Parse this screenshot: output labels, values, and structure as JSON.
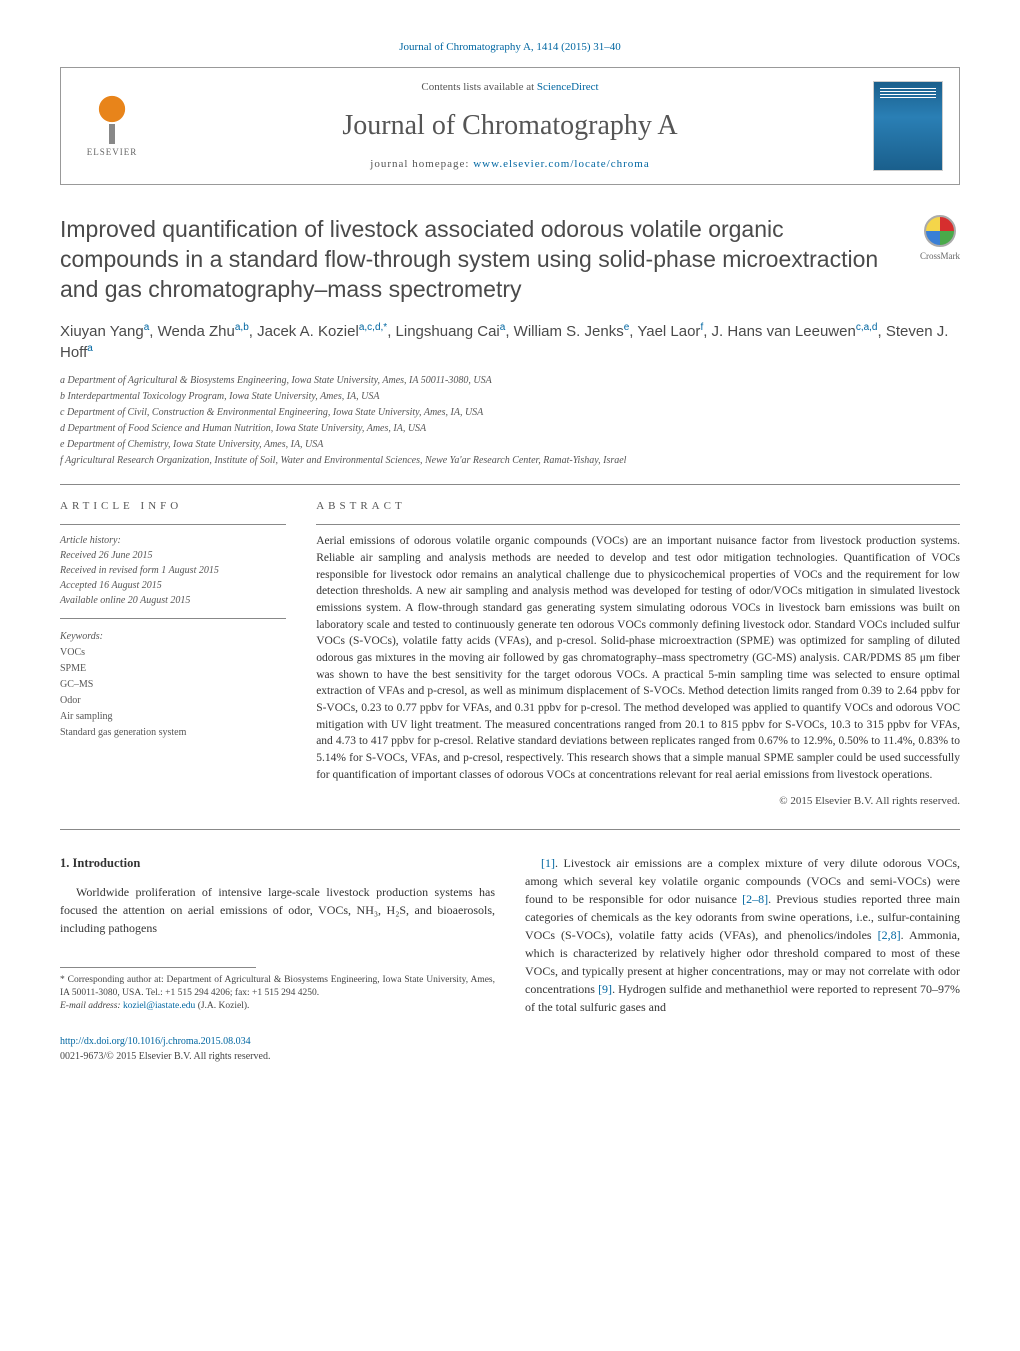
{
  "journal_ref": "Journal of Chromatography A, 1414 (2015) 31–40",
  "header": {
    "contents_prefix": "Contents lists available at ",
    "contents_link": "ScienceDirect",
    "journal_name": "Journal of Chromatography A",
    "homepage_prefix": "journal homepage: ",
    "homepage_url": "www.elsevier.com/locate/chroma",
    "publisher": "ELSEVIER"
  },
  "crossmark_label": "CrossMark",
  "title": "Improved quantification of livestock associated odorous volatile organic compounds in a standard flow-through system using solid-phase microextraction and gas chromatography–mass spectrometry",
  "authors_html": "Xiuyan Yang<sup>a</sup>, Wenda Zhu<sup>a,b</sup>, Jacek A. Koziel<sup>a,c,d,*</sup>, Lingshuang Cai<sup>a</sup>, William S. Jenks<sup>e</sup>, Yael Laor<sup>f</sup>, J. Hans van Leeuwen<sup>c,a,d</sup>, Steven J. Hoff<sup>a</sup>",
  "affiliations": [
    "a Department of Agricultural & Biosystems Engineering, Iowa State University, Ames, IA 50011-3080, USA",
    "b Interdepartmental Toxicology Program, Iowa State University, Ames, IA, USA",
    "c Department of Civil, Construction & Environmental Engineering, Iowa State University, Ames, IA, USA",
    "d Department of Food Science and Human Nutrition, Iowa State University, Ames, IA, USA",
    "e Department of Chemistry, Iowa State University, Ames, IA, USA",
    "f Agricultural Research Organization, Institute of Soil, Water and Environmental Sciences, Newe Ya'ar Research Center, Ramat-Yishay, Israel"
  ],
  "article_info": {
    "label": "ARTICLE INFO",
    "history_head": "Article history:",
    "history": [
      "Received 26 June 2015",
      "Received in revised form 1 August 2015",
      "Accepted 16 August 2015",
      "Available online 20 August 2015"
    ],
    "keywords_head": "Keywords:",
    "keywords": [
      "VOCs",
      "SPME",
      "GC–MS",
      "Odor",
      "Air sampling",
      "Standard gas generation system"
    ]
  },
  "abstract": {
    "label": "ABSTRACT",
    "text": "Aerial emissions of odorous volatile organic compounds (VOCs) are an important nuisance factor from livestock production systems. Reliable air sampling and analysis methods are needed to develop and test odor mitigation technologies. Quantification of VOCs responsible for livestock odor remains an analytical challenge due to physicochemical properties of VOCs and the requirement for low detection thresholds. A new air sampling and analysis method was developed for testing of odor/VOCs mitigation in simulated livestock emissions system. A flow-through standard gas generating system simulating odorous VOCs in livestock barn emissions was built on laboratory scale and tested to continuously generate ten odorous VOCs commonly defining livestock odor. Standard VOCs included sulfur VOCs (S-VOCs), volatile fatty acids (VFAs), and p-cresol. Solid-phase microextraction (SPME) was optimized for sampling of diluted odorous gas mixtures in the moving air followed by gas chromatography–mass spectrometry (GC-MS) analysis. CAR/PDMS 85 μm fiber was shown to have the best sensitivity for the target odorous VOCs. A practical 5-min sampling time was selected to ensure optimal extraction of VFAs and p-cresol, as well as minimum displacement of S-VOCs. Method detection limits ranged from 0.39 to 2.64 ppbv for S-VOCs, 0.23 to 0.77 ppbv for VFAs, and 0.31 ppbv for p-cresol. The method developed was applied to quantify VOCs and odorous VOC mitigation with UV light treatment. The measured concentrations ranged from 20.1 to 815 ppbv for S-VOCs, 10.3 to 315 ppbv for VFAs, and 4.73 to 417 ppbv for p-cresol. Relative standard deviations between replicates ranged from 0.67% to 12.9%, 0.50% to 11.4%, 0.83% to 5.14% for S-VOCs, VFAs, and p-cresol, respectively. This research shows that a simple manual SPME sampler could be used successfully for quantification of important classes of odorous VOCs at concentrations relevant for real aerial emissions from livestock operations.",
    "copyright": "© 2015 Elsevier B.V. All rights reserved."
  },
  "intro": {
    "heading": "1. Introduction",
    "left": "Worldwide proliferation of intensive large-scale livestock production systems has focused the attention on aerial emissions of odor, VOCs, NH₃, H₂S, and bioaerosols, including pathogens",
    "right_1": ". Livestock air emissions are a complex mixture of very dilute odorous VOCs, among which several key volatile organic compounds (VOCs and semi-VOCs) were found to be responsible for odor nuisance ",
    "right_2": ". Previous studies reported three main categories of chemicals as the key odorants from swine operations, i.e., sulfur-containing VOCs (S-VOCs), volatile fatty acids (VFAs), and phenolics/indoles ",
    "right_3": ". Ammonia, which is characterized by relatively higher odor threshold compared to most of these VOCs, and typically present at higher concentrations, may or may not correlate with odor concentrations ",
    "right_4": ". Hydrogen sulfide and methanethiol were reported to represent 70–97% of the total sulfuric gases and",
    "ref1": "[1]",
    "ref2": "[2–8]",
    "ref3": "[2,8]",
    "ref4": "[9]"
  },
  "footnotes": {
    "corr": "* Corresponding author at: Department of Agricultural & Biosystems Engineering, Iowa State University, Ames, IA 50011-3080, USA. Tel.: +1 515 294 4206; fax: +1 515 294 4250.",
    "email_label": "E-mail address: ",
    "email": "koziel@iastate.edu",
    "email_suffix": " (J.A. Koziel)."
  },
  "bottom": {
    "doi": "http://dx.doi.org/10.1016/j.chroma.2015.08.034",
    "issn": "0021-9673/© 2015 Elsevier B.V. All rights reserved."
  }
}
